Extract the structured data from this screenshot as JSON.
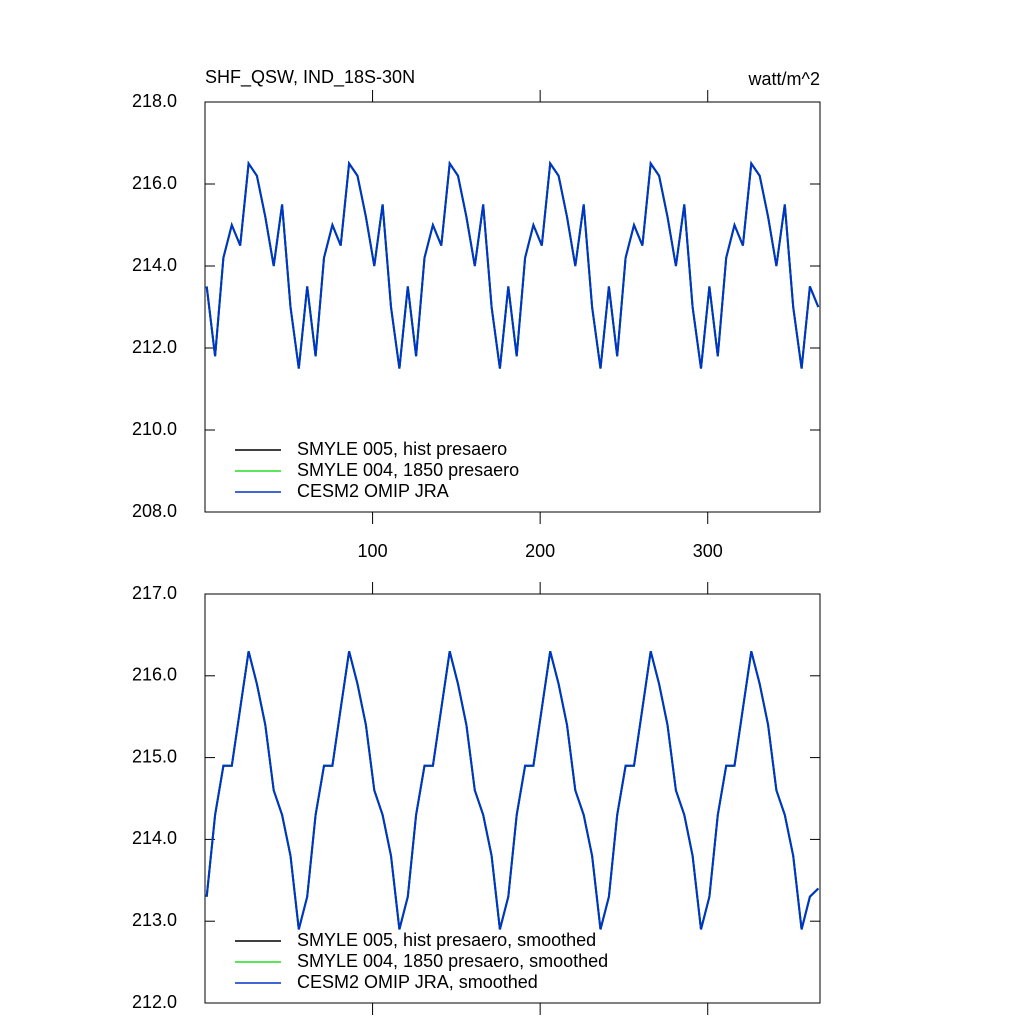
{
  "chart_data": [
    {
      "type": "line",
      "title": "SHF_QSW, IND_18S-30N",
      "units": "watt/m^2",
      "x": [
        1,
        6,
        11,
        16,
        21,
        26,
        31,
        36,
        41,
        46,
        51,
        56,
        61,
        66,
        71,
        76,
        81,
        86,
        91,
        96,
        101,
        106,
        111,
        116,
        121,
        126,
        131,
        136,
        141,
        146,
        151,
        156,
        161,
        166,
        171,
        176,
        181,
        186,
        191,
        196,
        201,
        206,
        211,
        216,
        221,
        226,
        231,
        236,
        241,
        246,
        251,
        256,
        261,
        266,
        271,
        276,
        281,
        286,
        291,
        296,
        301,
        306,
        311,
        316,
        321,
        326,
        331,
        336,
        341,
        346,
        351,
        356,
        361,
        366
      ],
      "xlim": [
        0,
        367
      ],
      "xticks": [
        100,
        200,
        300
      ],
      "xtick_labels": true,
      "ylim": [
        208,
        218
      ],
      "yticks": [
        {
          "value": 208,
          "label": "208.0"
        },
        {
          "value": 210,
          "label": "210.0"
        },
        {
          "value": 212,
          "label": "212.0"
        },
        {
          "value": 214,
          "label": "214.0"
        },
        {
          "value": 216,
          "label": "216.0"
        },
        {
          "value": 218,
          "label": "218.0"
        }
      ],
      "legend": "lower left",
      "series": [
        {
          "name": "SMYLE 005, hist presaero",
          "color": "#000000",
          "values": [
            213.5,
            211.8,
            214.2,
            215.0,
            214.5,
            216.5,
            216.2,
            215.2,
            214.0,
            215.5,
            213.0,
            211.5,
            213.5,
            211.8,
            214.2,
            215.0,
            214.5,
            216.5,
            216.2,
            215.2,
            214.0,
            215.5,
            213.0,
            211.5,
            213.5,
            211.8,
            214.2,
            215.0,
            214.5,
            216.5,
            216.2,
            215.2,
            214.0,
            215.5,
            213.0,
            211.5,
            213.5,
            211.8,
            214.2,
            215.0,
            214.5,
            216.5,
            216.2,
            215.2,
            214.0,
            215.5,
            213.0,
            211.5,
            213.5,
            211.8,
            214.2,
            215.0,
            214.5,
            216.5,
            216.2,
            215.2,
            214.0,
            215.5,
            213.0,
            211.5,
            213.5,
            211.8,
            214.2,
            215.0,
            214.5,
            216.5,
            216.2,
            215.2,
            214.0,
            215.5,
            213.0,
            211.5,
            213.5,
            213.0
          ]
        },
        {
          "name": "SMYLE 004, 1850 presaero",
          "color": "#22dd22",
          "values": [
            213.5,
            211.8,
            214.2,
            215.0,
            214.5,
            216.5,
            216.2,
            215.2,
            214.0,
            215.5,
            213.0,
            211.5,
            213.5,
            211.8,
            214.2,
            215.0,
            214.5,
            216.5,
            216.2,
            215.2,
            214.0,
            215.5,
            213.0,
            211.5,
            213.5,
            211.8,
            214.2,
            215.0,
            214.5,
            216.5,
            216.2,
            215.2,
            214.0,
            215.5,
            213.0,
            211.5,
            213.5,
            211.8,
            214.2,
            215.0,
            214.5,
            216.5,
            216.2,
            215.2,
            214.0,
            215.5,
            213.0,
            211.5,
            213.5,
            211.8,
            214.2,
            215.0,
            214.5,
            216.5,
            216.2,
            215.2,
            214.0,
            215.5,
            213.0,
            211.5,
            213.5,
            211.8,
            214.2,
            215.0,
            214.5,
            216.5,
            216.2,
            215.2,
            214.0,
            215.5,
            213.0,
            211.5,
            213.5,
            213.0
          ]
        },
        {
          "name": "CESM2 OMIP JRA",
          "color": "#0033cc",
          "values": [
            213.5,
            211.8,
            214.2,
            215.0,
            214.5,
            216.5,
            216.2,
            215.2,
            214.0,
            215.5,
            213.0,
            211.5,
            213.5,
            211.8,
            214.2,
            215.0,
            214.5,
            216.5,
            216.2,
            215.2,
            214.0,
            215.5,
            213.0,
            211.5,
            213.5,
            211.8,
            214.2,
            215.0,
            214.5,
            216.5,
            216.2,
            215.2,
            214.0,
            215.5,
            213.0,
            211.5,
            213.5,
            211.8,
            214.2,
            215.0,
            214.5,
            216.5,
            216.2,
            215.2,
            214.0,
            215.5,
            213.0,
            211.5,
            213.5,
            211.8,
            214.2,
            215.0,
            214.5,
            216.5,
            216.2,
            215.2,
            214.0,
            215.5,
            213.0,
            211.5,
            213.5,
            211.8,
            214.2,
            215.0,
            214.5,
            216.5,
            216.2,
            215.2,
            214.0,
            215.5,
            213.0,
            211.5,
            213.5,
            213.0
          ]
        }
      ]
    },
    {
      "type": "line",
      "x": [
        1,
        6,
        11,
        16,
        21,
        26,
        31,
        36,
        41,
        46,
        51,
        56,
        61,
        66,
        71,
        76,
        81,
        86,
        91,
        96,
        101,
        106,
        111,
        116,
        121,
        126,
        131,
        136,
        141,
        146,
        151,
        156,
        161,
        166,
        171,
        176,
        181,
        186,
        191,
        196,
        201,
        206,
        211,
        216,
        221,
        226,
        231,
        236,
        241,
        246,
        251,
        256,
        261,
        266,
        271,
        276,
        281,
        286,
        291,
        296,
        301,
        306,
        311,
        316,
        321,
        326,
        331,
        336,
        341,
        346,
        351,
        356,
        361,
        366
      ],
      "xlim": [
        0,
        367
      ],
      "xticks": [
        100,
        200,
        300
      ],
      "xtick_labels": false,
      "ylim": [
        212,
        217
      ],
      "yticks": [
        {
          "value": 212,
          "label": "212.0"
        },
        {
          "value": 213,
          "label": "213.0"
        },
        {
          "value": 214,
          "label": "214.0"
        },
        {
          "value": 215,
          "label": "215.0"
        },
        {
          "value": 216,
          "label": "216.0"
        },
        {
          "value": 217,
          "label": "217.0"
        }
      ],
      "legend": "lower left",
      "series": [
        {
          "name": "SMYLE 005, hist presaero, smoothed",
          "color": "#000000",
          "values": [
            213.3,
            214.3,
            214.9,
            214.9,
            215.6,
            216.3,
            215.9,
            215.4,
            214.6,
            214.3,
            213.8,
            212.9,
            213.3,
            214.3,
            214.9,
            214.9,
            215.6,
            216.3,
            215.9,
            215.4,
            214.6,
            214.3,
            213.8,
            212.9,
            213.3,
            214.3,
            214.9,
            214.9,
            215.6,
            216.3,
            215.9,
            215.4,
            214.6,
            214.3,
            213.8,
            212.9,
            213.3,
            214.3,
            214.9,
            214.9,
            215.6,
            216.3,
            215.9,
            215.4,
            214.6,
            214.3,
            213.8,
            212.9,
            213.3,
            214.3,
            214.9,
            214.9,
            215.6,
            216.3,
            215.9,
            215.4,
            214.6,
            214.3,
            213.8,
            212.9,
            213.3,
            214.3,
            214.9,
            214.9,
            215.6,
            216.3,
            215.9,
            215.4,
            214.6,
            214.3,
            213.8,
            212.9,
            213.3,
            213.4
          ]
        },
        {
          "name": "SMYLE 004, 1850 presaero, smoothed",
          "color": "#22dd22",
          "values": [
            213.3,
            214.3,
            214.9,
            214.9,
            215.6,
            216.3,
            215.9,
            215.4,
            214.6,
            214.3,
            213.8,
            212.9,
            213.3,
            214.3,
            214.9,
            214.9,
            215.6,
            216.3,
            215.9,
            215.4,
            214.6,
            214.3,
            213.8,
            212.9,
            213.3,
            214.3,
            214.9,
            214.9,
            215.6,
            216.3,
            215.9,
            215.4,
            214.6,
            214.3,
            213.8,
            212.9,
            213.3,
            214.3,
            214.9,
            214.9,
            215.6,
            216.3,
            215.9,
            215.4,
            214.6,
            214.3,
            213.8,
            212.9,
            213.3,
            214.3,
            214.9,
            214.9,
            215.6,
            216.3,
            215.9,
            215.4,
            214.6,
            214.3,
            213.8,
            212.9,
            213.3,
            214.3,
            214.9,
            214.9,
            215.6,
            216.3,
            215.9,
            215.4,
            214.6,
            214.3,
            213.8,
            212.9,
            213.3,
            213.4
          ]
        },
        {
          "name": "CESM2 OMIP JRA, smoothed",
          "color": "#0033cc",
          "values": [
            213.3,
            214.3,
            214.9,
            214.9,
            215.6,
            216.3,
            215.9,
            215.4,
            214.6,
            214.3,
            213.8,
            212.9,
            213.3,
            214.3,
            214.9,
            214.9,
            215.6,
            216.3,
            215.9,
            215.4,
            214.6,
            214.3,
            213.8,
            212.9,
            213.3,
            214.3,
            214.9,
            214.9,
            215.6,
            216.3,
            215.9,
            215.4,
            214.6,
            214.3,
            213.8,
            212.9,
            213.3,
            214.3,
            214.9,
            214.9,
            215.6,
            216.3,
            215.9,
            215.4,
            214.6,
            214.3,
            213.8,
            212.9,
            213.3,
            214.3,
            214.9,
            214.9,
            215.6,
            216.3,
            215.9,
            215.4,
            214.6,
            214.3,
            213.8,
            212.9,
            213.3,
            214.3,
            214.9,
            214.9,
            215.6,
            216.3,
            215.9,
            215.4,
            214.6,
            214.3,
            213.8,
            212.9,
            213.3,
            213.4
          ]
        }
      ]
    }
  ]
}
